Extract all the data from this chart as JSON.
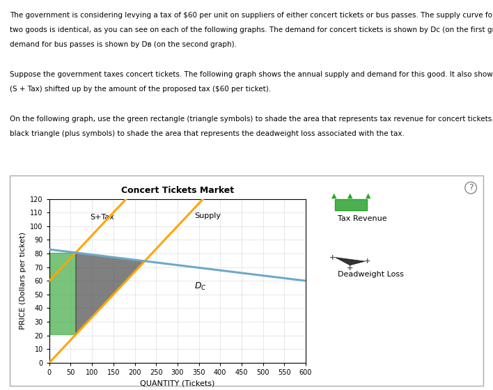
{
  "title": "Concert Tickets Market",
  "xlabel": "QUANTITY (Tickets)",
  "ylabel": "PRICE (Dollars per ticket)",
  "xlim": [
    0,
    600
  ],
  "ylim": [
    0,
    120
  ],
  "xticks": [
    0,
    50,
    100,
    150,
    200,
    250,
    300,
    350,
    400,
    450,
    500,
    550,
    600
  ],
  "yticks": [
    0,
    10,
    20,
    30,
    40,
    50,
    60,
    70,
    80,
    90,
    100,
    110,
    120
  ],
  "supply_slope": 0.3333333,
  "supply_intercept": 0,
  "stax_slope": 0.3333333,
  "stax_intercept": 60,
  "demand_intercept": 83,
  "demand_slope": -0.038333,
  "tax": 60,
  "supply_color": "#FFA500",
  "demand_color": "#6EA8CB",
  "tax_revenue_color": "#4CAF50",
  "dwl_color": "#555555",
  "background_color": "#ffffff",
  "grid_color": "#dddddd",
  "line_width": 2.2,
  "para_text_1": "The government is considering levying a tax of $60 per unit on suppliers of either concert tickets or bus passes. The supply curve for each of these",
  "para_text_2": "two goods is identical, as you can see on each of the following graphs. The demand for concert tickets is shown by Dᴄ (on the first graph), and the",
  "para_text_3": "demand for bus passes is shown by Dʙ (on the second graph).",
  "para_text_4": "Suppose the government taxes concert tickets. The following graph shows the annual supply and demand for this good. It also shows the supply curve",
  "para_text_5": "(S + Tax) shifted up by the amount of the proposed tax ($60 per ticket).",
  "para_text_6": "On the following graph, use the green rectangle (triangle symbols) to shade the area that represents tax revenue for concert tickets. Then use the",
  "para_text_7": "black triangle (plus symbols) to shade the area that represents the deadweight loss associated with the tax."
}
